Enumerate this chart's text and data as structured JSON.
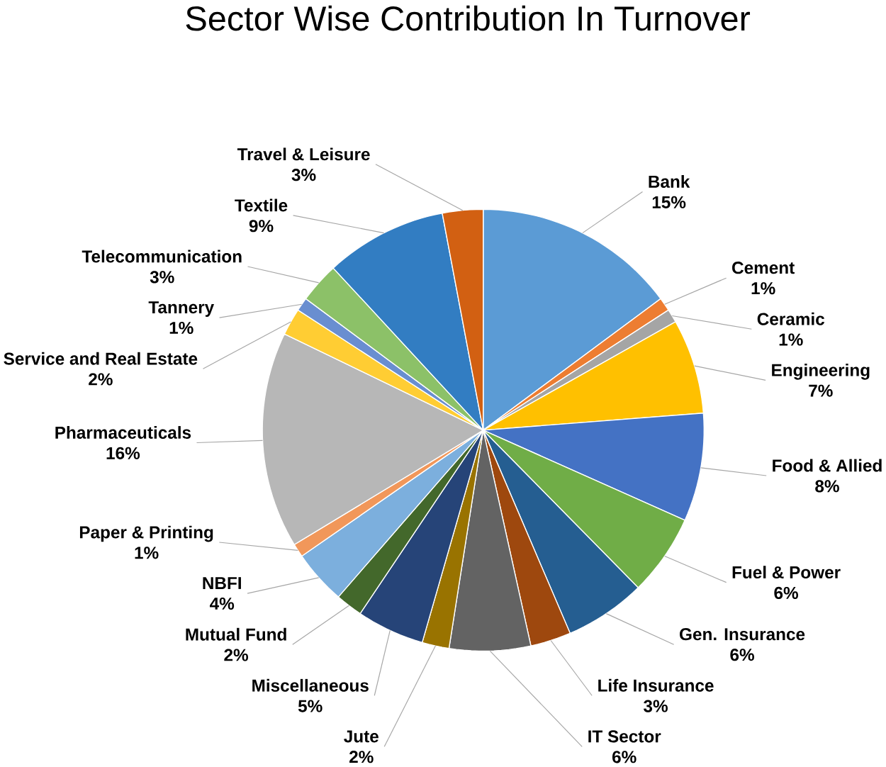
{
  "chart_data": {
    "type": "pie",
    "title": "Sector Wise Contribution In Turnover",
    "categories": [
      "Bank",
      "Cement",
      "Ceramic",
      "Engineering",
      "Food & Allied",
      "Fuel & Power",
      "Gen. Insurance",
      "Life Insurance",
      "IT Sector",
      "Jute",
      "Miscellaneous",
      "Mutual Fund",
      "NBFI",
      "Paper & Printing",
      "Pharmaceuticals",
      "Service and Real Estate",
      "Tannery",
      "Telecommunication",
      "Textile",
      "Travel & Leisure"
    ],
    "values": [
      15,
      1,
      1,
      7,
      8,
      6,
      6,
      3,
      6,
      2,
      5,
      2,
      4,
      1,
      16,
      2,
      1,
      3,
      9,
      3
    ],
    "value_labels": [
      "15%",
      "1%",
      "1%",
      "7%",
      "8%",
      "6%",
      "6%",
      "3%",
      "6%",
      "2%",
      "5%",
      "2%",
      "4%",
      "1%",
      "16%",
      "2%",
      "1%",
      "3%",
      "9%",
      "3%"
    ],
    "colors": [
      "#5b9bd5",
      "#ed7d31",
      "#a5a5a5",
      "#ffc000",
      "#4472c4",
      "#70ad47",
      "#255e91",
      "#9e480e",
      "#636363",
      "#997300",
      "#264478",
      "#43682b",
      "#7cafdd",
      "#f1975a",
      "#b7b7b7",
      "#ffcd33",
      "#698ed0",
      "#8cc168",
      "#327dc2",
      "#d26012"
    ]
  }
}
